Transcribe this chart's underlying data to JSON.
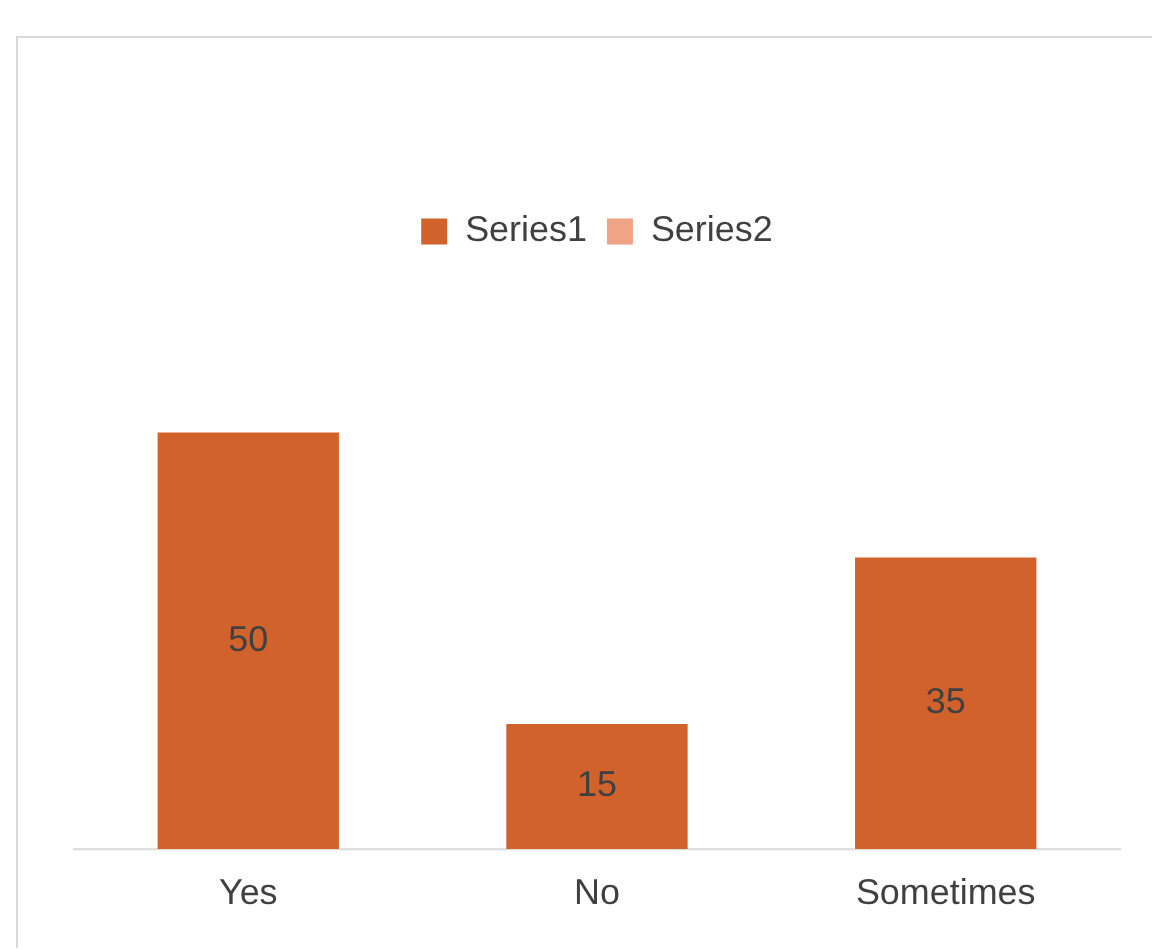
{
  "chart_data": {
    "type": "bar",
    "categories": [
      "Yes",
      "No",
      "Sometimes"
    ],
    "series": [
      {
        "name": "Series1",
        "color": "#d2622b",
        "values": [
          50,
          15,
          35
        ]
      },
      {
        "name": "Series2",
        "color": "#f1a385",
        "values": [
          null,
          null,
          null
        ]
      }
    ],
    "data_labels": true,
    "legend": "top",
    "grid": false
  }
}
